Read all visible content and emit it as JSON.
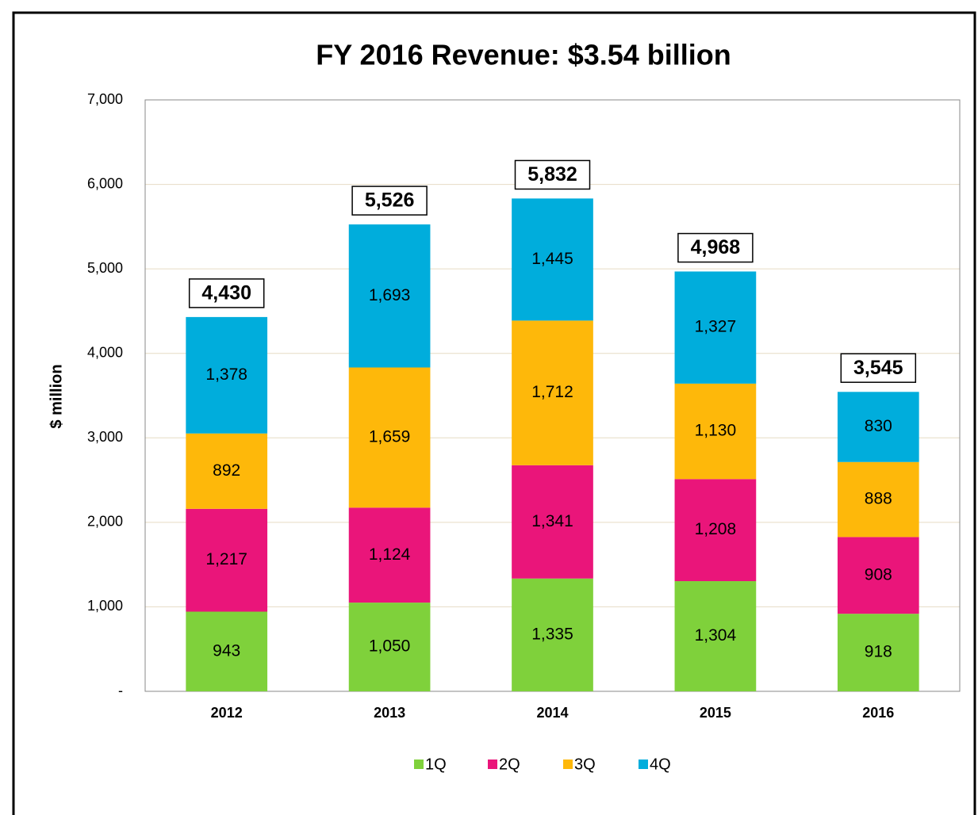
{
  "chart_data": {
    "type": "stacked_bar",
    "title": "FY 2016 Revenue: $3.54 billion",
    "y_label": "$ million",
    "categories": [
      "2012",
      "2013",
      "2014",
      "2015",
      "2016"
    ],
    "series": [
      {
        "name": "1Q",
        "color": "#7fd13b",
        "values": [
          943,
          1050,
          1335,
          1304,
          918
        ],
        "value_labels": [
          "943",
          "1,050",
          "1,335",
          "1,304",
          "918"
        ]
      },
      {
        "name": "2Q",
        "color": "#ea157a",
        "values": [
          1217,
          1124,
          1341,
          1208,
          908
        ],
        "value_labels": [
          "1,217",
          "1,124",
          "1,341",
          "1,208",
          "908"
        ]
      },
      {
        "name": "3Q",
        "color": "#feb80a",
        "values": [
          892,
          1659,
          1712,
          1130,
          888
        ],
        "value_labels": [
          "892",
          "1,659",
          "1,712",
          "1,130",
          "888"
        ]
      },
      {
        "name": "4Q",
        "color": "#00addc",
        "values": [
          1378,
          1693,
          1445,
          1327,
          830
        ],
        "value_labels": [
          "1,378",
          "1,693",
          "1,445",
          "1,327",
          "830"
        ]
      }
    ],
    "totals": {
      "values": [
        4430,
        5526,
        5832,
        4968,
        3545
      ],
      "value_labels": [
        "4,430",
        "5,526",
        "5,832",
        "4,968",
        "3,545"
      ]
    },
    "ylim": [
      0,
      7000
    ],
    "yticks": [
      {
        "value": 0,
        "label": "-"
      },
      {
        "value": 1000,
        "label": "1,000"
      },
      {
        "value": 2000,
        "label": "2,000"
      },
      {
        "value": 3000,
        "label": "3,000"
      },
      {
        "value": 4000,
        "label": "4,000"
      },
      {
        "value": 5000,
        "label": "5,000"
      },
      {
        "value": 6000,
        "label": "6,000"
      },
      {
        "value": 7000,
        "label": "7,000"
      }
    ],
    "grid": true,
    "legend": "bottom"
  }
}
